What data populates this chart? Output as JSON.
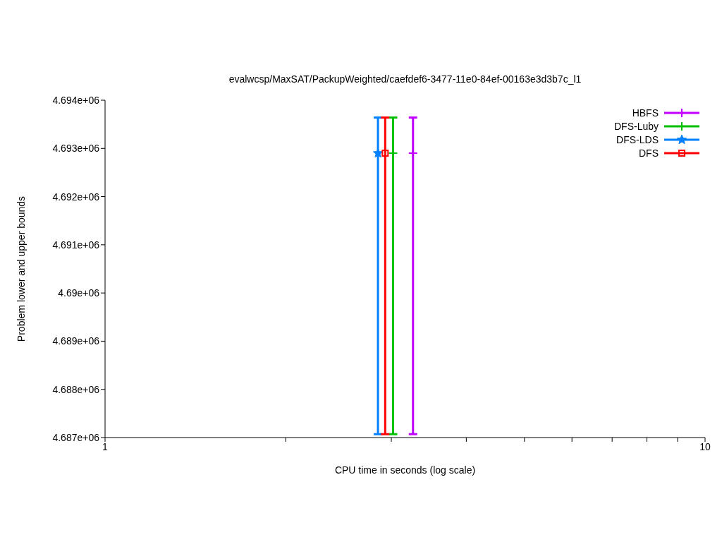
{
  "chart_data": {
    "type": "scatter",
    "title": "evalwcsp/MaxSAT/PackupWeighted/caefdef6-3477-11e0-84ef-00163e3d3b7c_l1",
    "xlabel": "CPU time in seconds (log scale)",
    "ylabel": "Problem lower and upper bounds",
    "log": "x",
    "xlim": [
      1,
      10
    ],
    "xticks": [
      1,
      {
        "value": 2,
        "label": null
      },
      {
        "value": 3,
        "label": null
      },
      {
        "value": 4,
        "label": null
      },
      {
        "value": 5,
        "label": null
      },
      {
        "value": 6,
        "label": null
      },
      {
        "value": 7,
        "label": null
      },
      {
        "value": 8,
        "label": null
      },
      {
        "value": 9,
        "label": null
      },
      10
    ],
    "ylim": [
      4687000,
      4694000
    ],
    "yticks": [
      {
        "value": 4687000,
        "label": "4.687e+06"
      },
      {
        "value": 4688000,
        "label": "4.688e+06"
      },
      {
        "value": 4689000,
        "label": "4.689e+06"
      },
      {
        "value": 4690000,
        "label": "4.69e+06"
      },
      {
        "value": 4691000,
        "label": "4.691e+06"
      },
      {
        "value": 4692000,
        "label": "4.692e+06"
      },
      {
        "value": 4693000,
        "label": "4.693e+06"
      },
      {
        "value": 4694000,
        "label": "4.694e+06"
      }
    ],
    "legend": "top right",
    "series": [
      {
        "name": "HBFS",
        "color": "#c000ff",
        "marker": "cross",
        "x": [
          3.26
        ],
        "values": [
          4692900
        ],
        "errors": [
          [
            4687070,
            4693640
          ]
        ]
      },
      {
        "name": "DFS-Luby",
        "color": "#00c000",
        "marker": "cross",
        "x": [
          3.02
        ],
        "values": [
          4692900
        ],
        "errors": [
          [
            4687070,
            4693640
          ]
        ]
      },
      {
        "name": "DFS-LDS",
        "color": "#0080ff",
        "marker": "star",
        "x": [
          2.85
        ],
        "values": [
          4692900
        ],
        "errors": [
          [
            4687070,
            4693640
          ]
        ]
      },
      {
        "name": "DFS",
        "color": "#ff0000",
        "marker": "square",
        "x": [
          2.93
        ],
        "values": [
          4692900
        ],
        "errors": [
          [
            4687070,
            4693640
          ]
        ]
      }
    ]
  }
}
